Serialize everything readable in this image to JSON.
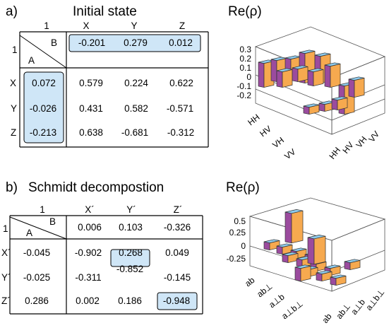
{
  "panel_a": {
    "letter": "a)",
    "title": "Initial state",
    "rho_label": "Re(ρ)",
    "corner": "1",
    "corner_b": "B",
    "corner_a": "A",
    "col_heads": [
      "X",
      "Y",
      "Z"
    ],
    "row_heads": [
      "1",
      "X",
      "Y",
      "Z"
    ],
    "row1": [
      "-0.201",
      "0.279",
      "0.012"
    ],
    "col1": [
      "0.072",
      "-0.026",
      "-0.213"
    ],
    "body": [
      [
        "0.579",
        "0.224",
        "0.622"
      ],
      [
        "0.431",
        "0.582",
        "-0.571"
      ],
      [
        "0.638",
        "-0.681",
        "-0.312"
      ]
    ],
    "z_ticks": [
      "0.3",
      "0.2",
      "0.1",
      "0",
      "-0.1",
      "-0.2"
    ],
    "axis_left": [
      "HH",
      "HV",
      "VH",
      "VV"
    ],
    "axis_right": [
      "HH",
      "HV",
      "VH",
      "VV"
    ]
  },
  "panel_b": {
    "letter": "b)",
    "title": "Schmidt decompostion",
    "rho_label": "Re(ρ)",
    "corner": "1",
    "corner_b": "B",
    "corner_a": "A",
    "col_heads": [
      "X´",
      "Y´",
      "Z´"
    ],
    "row_heads": [
      "1",
      "X´",
      "Y´",
      "Z´"
    ],
    "row1": [
      "0.006",
      "0.103",
      "-0.326"
    ],
    "col1": [
      "-0.045",
      "-0.025",
      "0.286"
    ],
    "body": [
      [
        "-0.902",
        "0.268",
        "0.049"
      ],
      [
        "-0.311",
        "-0.852",
        "-0.145"
      ],
      [
        "0.002",
        "0.186",
        "-0.948"
      ]
    ],
    "z_ticks": [
      "0.5",
      "0.25",
      "0",
      "-0.25"
    ],
    "axis_left": [
      "ab",
      "ab⊥",
      "a⊥b",
      "a⊥b⊥"
    ],
    "axis_right": [
      "ab",
      "ab⊥",
      "a⊥b",
      "a⊥b⊥"
    ]
  },
  "colors": {
    "highlight": "#cfe6f7",
    "bar_blue": "#8dcbee",
    "bar_purple": "#9b4b9e",
    "bar_orange": "#f6a94f"
  }
}
